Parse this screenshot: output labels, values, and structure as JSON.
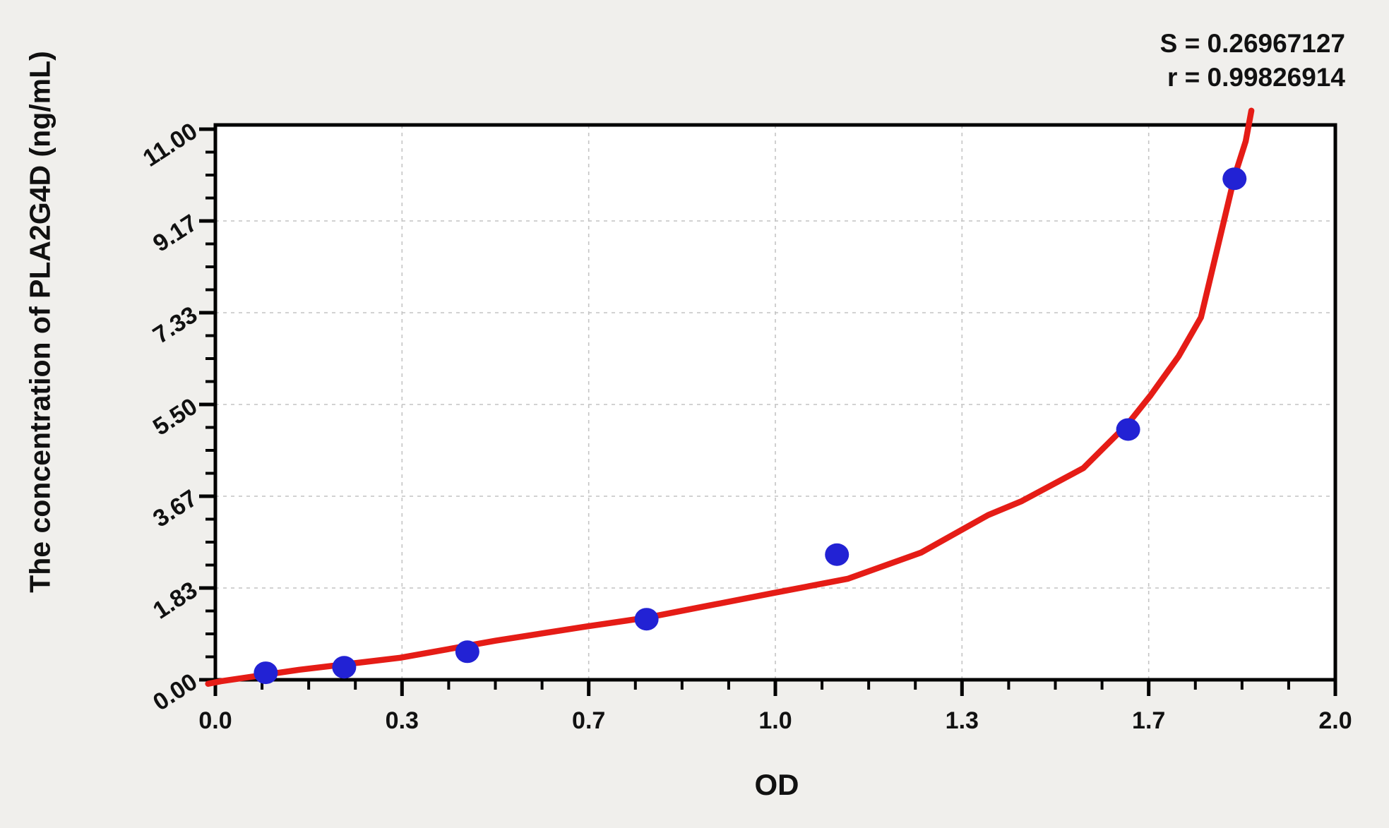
{
  "chart_data": {
    "type": "scatter",
    "title": "",
    "xlabel": "OD",
    "ylabel": "The concentration of PLA2G4D (ng/mL)",
    "stats": {
      "s": "S = 0.26967127",
      "r": "r = 0.99826914"
    },
    "x_axis": {
      "min": 0,
      "max": 2,
      "majors": [
        0,
        0.3333,
        0.6667,
        1.0,
        1.3333,
        1.6667,
        2.0
      ],
      "major_tick_labels": [
        "0.0",
        "0.3",
        "0.7",
        "1.0",
        "1.3",
        "1.7",
        "2.0"
      ],
      "minor_per_major": 3,
      "grid": true
    },
    "y_axis": {
      "min": 0,
      "max": 11,
      "majors": [
        0,
        1.8333,
        3.6667,
        5.5,
        7.3333,
        9.1667,
        11.0
      ],
      "major_tick_labels": [
        "0.00",
        "1.83",
        "3.67",
        "5.50",
        "7.33",
        "9.17",
        "11.00"
      ],
      "minor_per_major": 3,
      "grid": true
    },
    "series": [
      {
        "name": "standard-points",
        "type": "scatter",
        "color": "#2222d4",
        "points": [
          {
            "od": 0.09,
            "conc": 0.14
          },
          {
            "od": 0.23,
            "conc": 0.25
          },
          {
            "od": 0.45,
            "conc": 0.56
          },
          {
            "od": 0.77,
            "conc": 1.21
          },
          {
            "od": 1.11,
            "conc": 2.5
          },
          {
            "od": 1.63,
            "conc": 5.0
          },
          {
            "od": 1.82,
            "conc": 10.01
          }
        ]
      },
      {
        "name": "fitted-curve",
        "type": "line",
        "color": "#e51c16",
        "points": [
          [
            -0.013,
            -0.08
          ],
          [
            0.01,
            -0.03
          ],
          [
            0.15,
            0.2
          ],
          [
            0.33,
            0.44
          ],
          [
            0.5,
            0.78
          ],
          [
            0.66,
            1.06
          ],
          [
            0.77,
            1.24
          ],
          [
            0.88,
            1.48
          ],
          [
            1.0,
            1.74
          ],
          [
            1.13,
            2.02
          ],
          [
            1.26,
            2.54
          ],
          [
            1.38,
            3.29
          ],
          [
            1.44,
            3.57
          ],
          [
            1.55,
            4.23
          ],
          [
            1.63,
            5.12
          ],
          [
            1.67,
            5.68
          ],
          [
            1.72,
            6.46
          ],
          [
            1.76,
            7.24
          ],
          [
            1.79,
            8.65
          ],
          [
            1.82,
            10.06
          ],
          [
            1.84,
            10.76
          ],
          [
            1.85,
            11.37
          ]
        ]
      }
    ],
    "colors": {
      "background": "#f0efec",
      "plot_background": "#ffffff",
      "axis": "#000000",
      "grid": "#c4c4c4"
    }
  }
}
